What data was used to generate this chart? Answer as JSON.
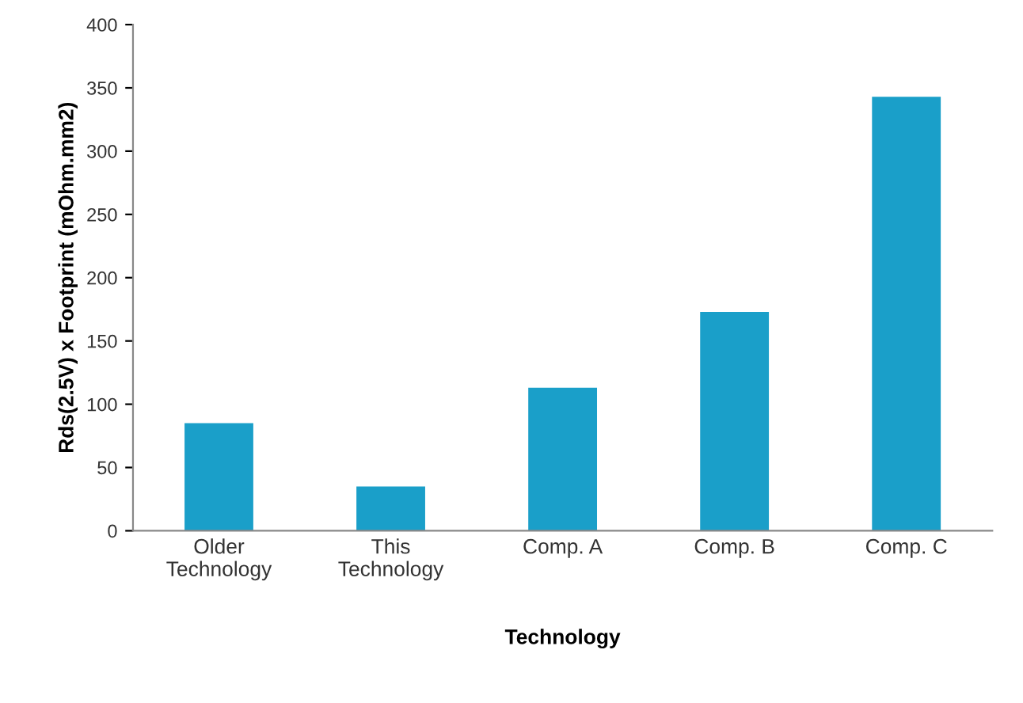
{
  "chart_data": {
    "type": "bar",
    "xlabel": "Technology",
    "ylabel": "Rds(2.5V) x Footprint (mOhm.mm2)",
    "categories": [
      "Older\nTechnology",
      "This\nTechnology",
      "Comp. A",
      "Comp. B",
      "Comp. C"
    ],
    "values": [
      85,
      35,
      113,
      173,
      343
    ],
    "color": "#1a9fc9",
    "ylim": [
      0,
      400
    ],
    "yticks": [
      0,
      50,
      100,
      150,
      200,
      250,
      300,
      350,
      400
    ],
    "grid": false
  }
}
